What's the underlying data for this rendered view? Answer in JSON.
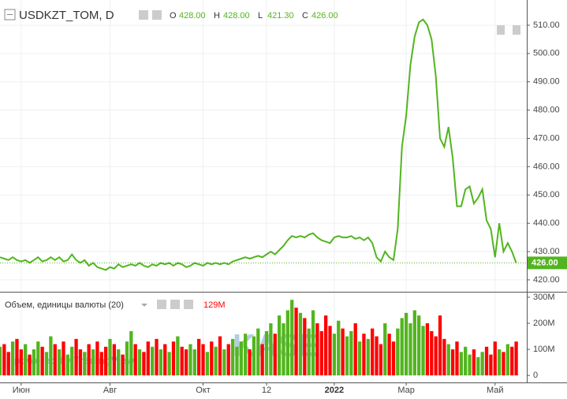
{
  "chart_data": {
    "type": "line",
    "title": "USDKZT_TOM, D",
    "ohlc": [
      {
        "name": "O",
        "value": 428,
        "value_label": "428.00"
      },
      {
        "name": "H",
        "value": 428,
        "value_label": "428.00"
      },
      {
        "name": "L",
        "value": 421.3,
        "value_label": "421.30"
      },
      {
        "name": "C",
        "value": 426,
        "value_label": "426.00"
      }
    ],
    "color": "#52b51f",
    "values": [
      428,
      427.5,
      427,
      428,
      427,
      426.5,
      427,
      426,
      427,
      428,
      426.5,
      427,
      428,
      427,
      428,
      426.5,
      427,
      429,
      427,
      426,
      427,
      425,
      426,
      424.5,
      424,
      423.5,
      424.5,
      424,
      425.5,
      424.5,
      425,
      425.5,
      425,
      426,
      425,
      424.5,
      425.5,
      425,
      426,
      425.5,
      426,
      425,
      426,
      425.5,
      424.5,
      425,
      426,
      425.5,
      425,
      426,
      425.5,
      426,
      425.5,
      426,
      425.5,
      426.5,
      427,
      427.5,
      428,
      427.5,
      428,
      428.5,
      428,
      429,
      430,
      429,
      430.5,
      432,
      434,
      435.5,
      435,
      435.5,
      435,
      436,
      436.5,
      435,
      434,
      433.5,
      433,
      435,
      435.5,
      435,
      435,
      435.5,
      434.5,
      435,
      434,
      435,
      433,
      428,
      426.5,
      430,
      428,
      427,
      438,
      467,
      478,
      496,
      506,
      511,
      512,
      510,
      505,
      492,
      470,
      467,
      474,
      463,
      446,
      446,
      452,
      453,
      447,
      449,
      452,
      441,
      438,
      428,
      440,
      430,
      433,
      430,
      426
    ],
    "last_price": {
      "value": 426,
      "label": "426.00"
    },
    "xlim": [
      0,
      124.5
    ],
    "xticks": [
      {
        "value": 5,
        "label": "Июн"
      },
      {
        "value": 26,
        "label": "Авг"
      },
      {
        "value": 48,
        "label": "Окт"
      },
      {
        "value": 63,
        "label": "12"
      },
      {
        "value": 79,
        "label": "2022"
      },
      {
        "value": 96,
        "label": "Мар"
      },
      {
        "value": 117,
        "label": "Май"
      }
    ],
    "ylim": [
      415.8,
      518.9
    ],
    "yticks": [
      {
        "value": 420,
        "label": "420.00"
      },
      {
        "value": 430,
        "label": "430.00"
      },
      {
        "value": 440,
        "label": "440.00"
      },
      {
        "value": 450,
        "label": "450.00"
      },
      {
        "value": 460,
        "label": "460.00"
      },
      {
        "value": 470,
        "label": "470.00"
      },
      {
        "value": 480,
        "label": "480.00"
      },
      {
        "value": 490,
        "label": "490.00"
      },
      {
        "value": 500,
        "label": "500.00"
      },
      {
        "value": 510,
        "label": "510.00"
      }
    ],
    "grid": true,
    "volume": {
      "title": "Объем, единицы валюты (20)",
      "last": {
        "value": 129,
        "label": "129M"
      },
      "up_color": "#52b51f",
      "down_color": "#ff0000",
      "values": [
        110,
        120,
        90,
        130,
        140,
        100,
        120,
        80,
        100,
        130,
        110,
        90,
        150,
        120,
        100,
        130,
        80,
        110,
        140,
        100,
        90,
        120,
        100,
        130,
        90,
        110,
        140,
        120,
        100,
        80,
        130,
        170,
        120,
        100,
        90,
        130,
        110,
        140,
        100,
        120,
        90,
        130,
        150,
        110,
        100,
        120,
        100,
        140,
        120,
        90,
        130,
        110,
        150,
        100,
        120,
        140,
        110,
        130,
        160,
        100,
        150,
        180,
        120,
        170,
        200,
        160,
        230,
        200,
        250,
        290,
        260,
        240,
        220,
        180,
        250,
        200,
        170,
        230,
        190,
        160,
        210,
        180,
        150,
        170,
        200,
        130,
        160,
        140,
        180,
        150,
        120,
        200,
        160,
        130,
        180,
        220,
        240,
        200,
        250,
        230,
        190,
        200,
        170,
        150,
        230,
        140,
        120,
        100,
        130,
        90,
        110,
        80,
        100,
        70,
        90,
        110,
        80,
        130,
        100,
        90,
        120,
        110,
        130
      ],
      "ylim": [
        -27,
        315
      ],
      "yticks": [
        0,
        {
          "value": 100,
          "label": "100M"
        },
        {
          "value": 200,
          "label": "200M"
        },
        {
          "value": 300,
          "label": "300M"
        }
      ]
    },
    "watermark": {
      "logo": "KASE",
      "text": "powered by TradingView"
    }
  }
}
